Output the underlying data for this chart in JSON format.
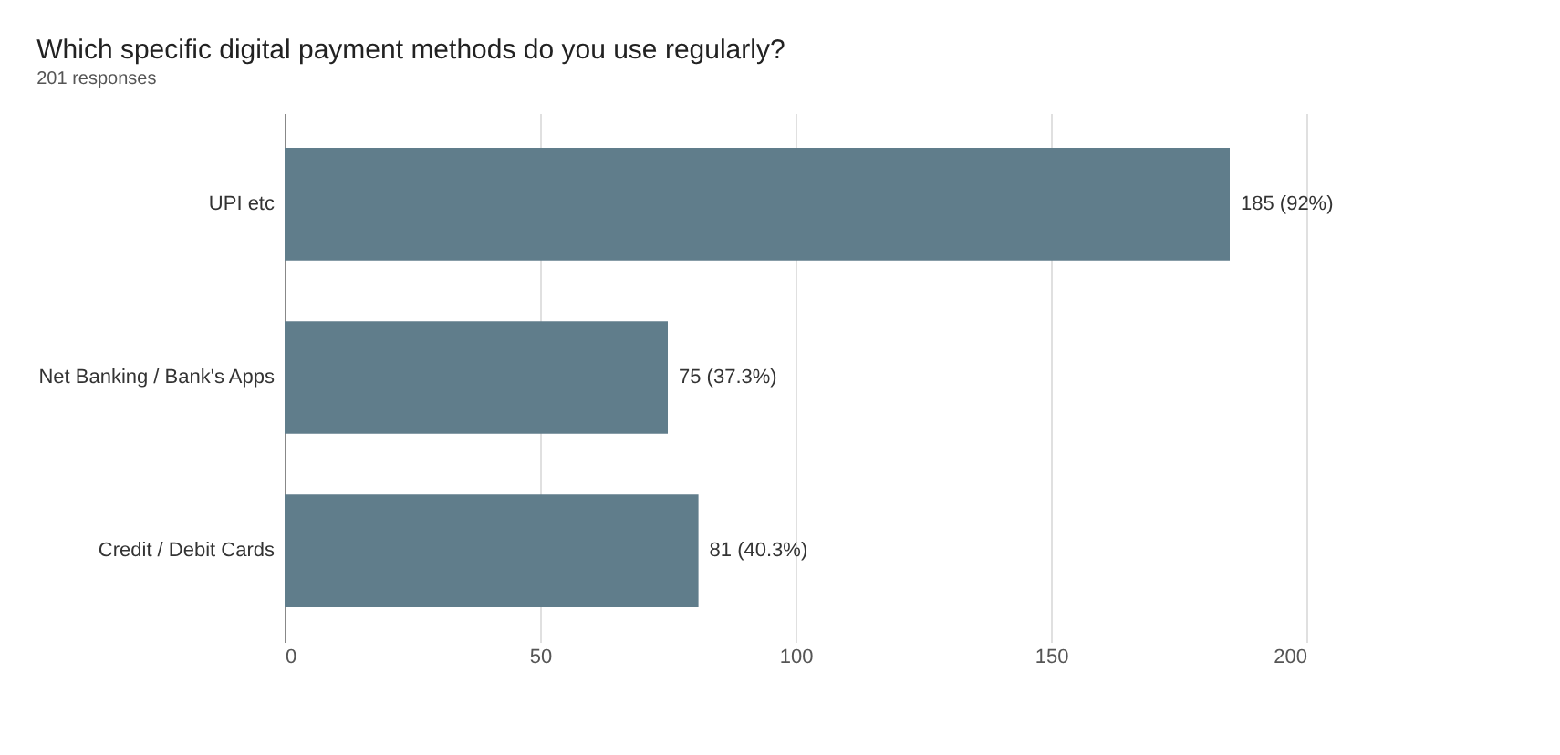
{
  "chart_data": {
    "type": "bar",
    "orientation": "horizontal",
    "title": "Which specific digital payment methods do you use regularly?",
    "subtitle": "201 responses",
    "categories": [
      "UPI etc",
      "Net Banking / Bank's Apps",
      "Credit / Debit Cards"
    ],
    "values": [
      185,
      75,
      81
    ],
    "value_labels": [
      "185 (92%)",
      "75 (37.3%)",
      "81 (40.3%)"
    ],
    "color": "#607d8b",
    "xlim": [
      0,
      200
    ],
    "xticks": [
      0,
      50,
      100,
      150,
      200
    ],
    "grid": "x"
  }
}
